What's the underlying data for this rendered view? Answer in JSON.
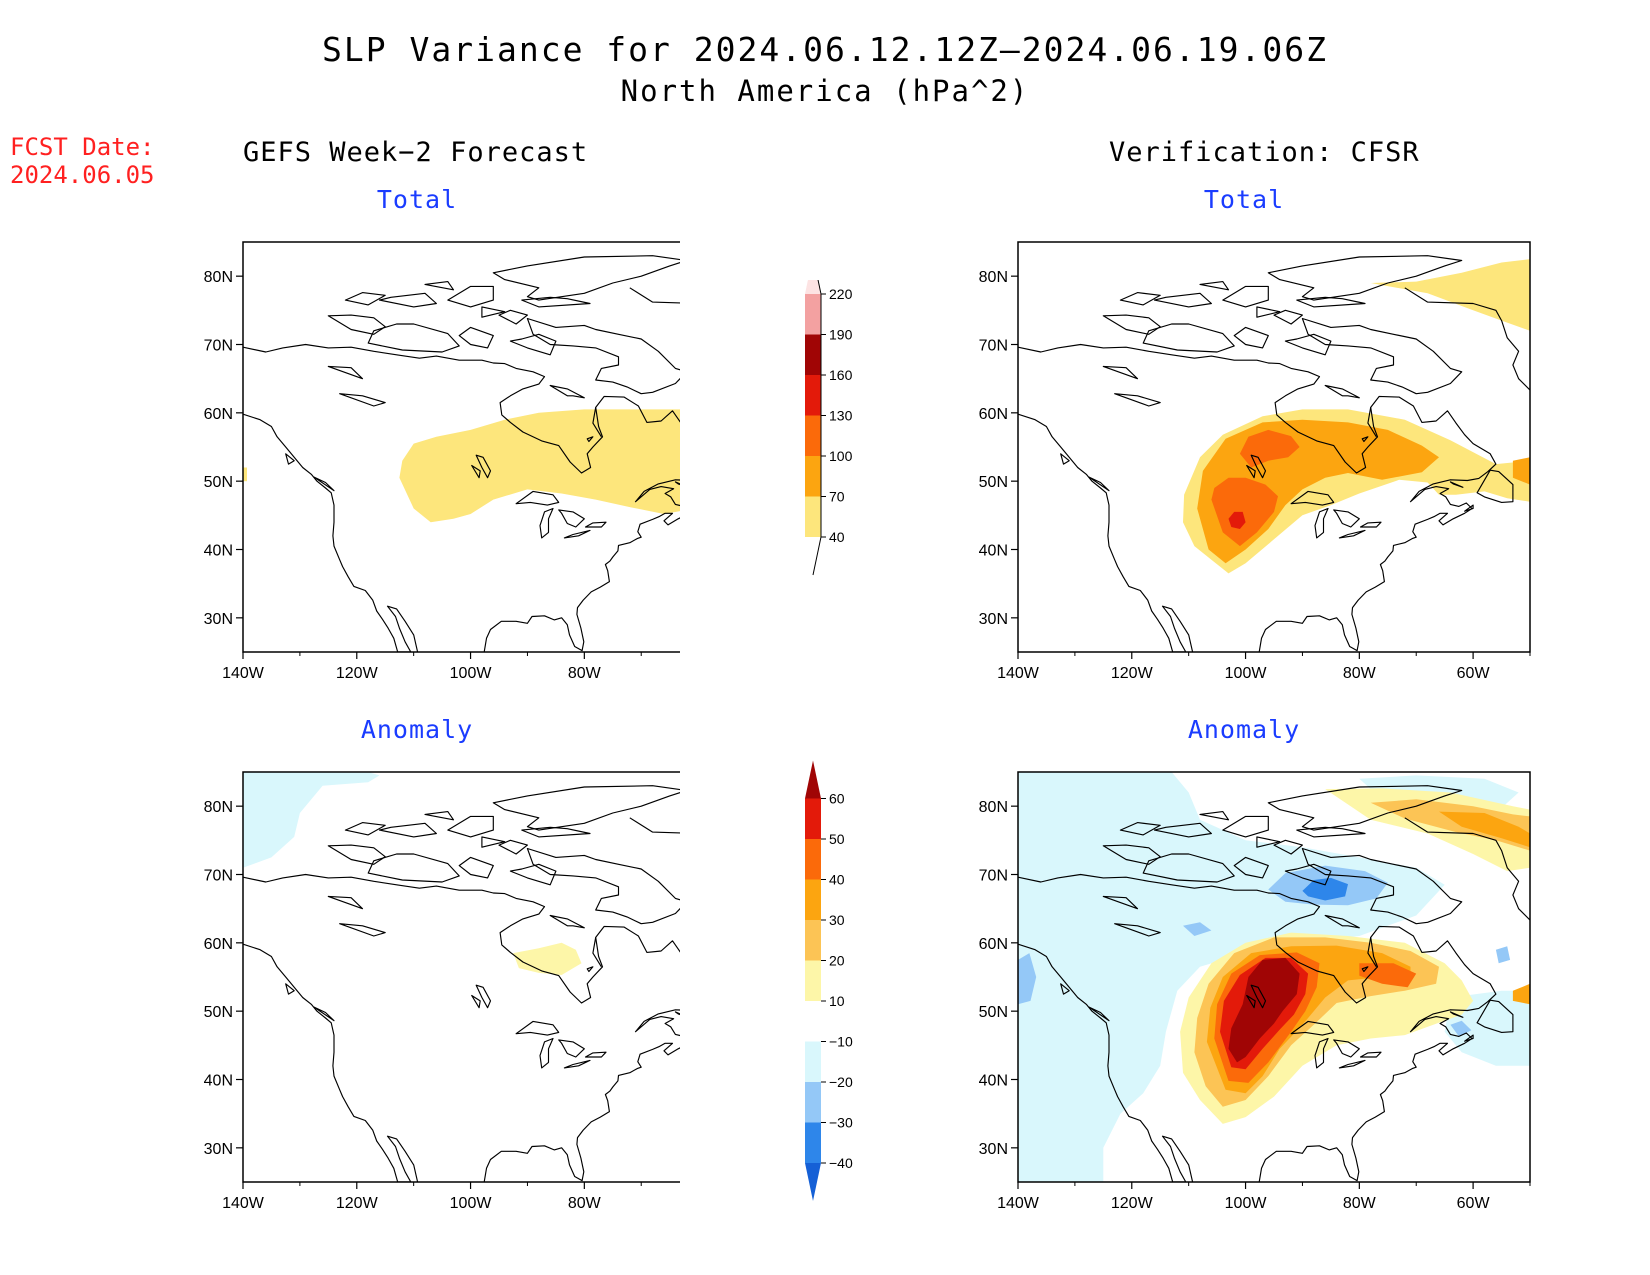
{
  "header": {
    "title": "SLP Variance for 2024.06.12.12Z–2024.06.19.06Z",
    "subtitle": "North America (hPa^2)",
    "fcst_label": "FCST Date:",
    "fcst_date": "2024.06.05"
  },
  "columns": {
    "left": "GEFS Week−2 Forecast",
    "right": "Verification: CFSR"
  },
  "panels": {
    "total_label": "Total",
    "anomaly_label": "Anomaly"
  },
  "axes": {
    "lat_ticks": [
      "80N",
      "70N",
      "60N",
      "50N",
      "40N",
      "30N"
    ],
    "lon_ticks": [
      "140W",
      "120W",
      "100W",
      "80W",
      "60W"
    ]
  },
  "colorbars": {
    "total": {
      "levels": [
        "40",
        "70",
        "100",
        "130",
        "160",
        "190",
        "220"
      ],
      "colors": [
        "#fde67c",
        "#fca510",
        "#fb6a0a",
        "#e31a0a",
        "#a00505",
        "#f3a1a1",
        "#fde3e3"
      ]
    },
    "anomaly": {
      "levels": [
        "−40",
        "−30",
        "−20",
        "−10",
        "10",
        "20",
        "30",
        "40",
        "50",
        "60"
      ],
      "colors": [
        "#1560d6",
        "#2e86ea",
        "#94c8f7",
        "#d9f7fc",
        "#ffffff",
        "#fdf6a8",
        "#fcc455",
        "#fca510",
        "#fb6a0a",
        "#e31a0a",
        "#a00505"
      ]
    }
  },
  "fill_colors": {
    "c40": "#fde67c",
    "c70": "#fca510",
    "c100": "#fb6a0a",
    "c130": "#e31a0a",
    "c160": "#a00505",
    "a10": "#fdf6a8",
    "a20": "#fcc455",
    "a30": "#fca510",
    "a40": "#fb6a0a",
    "a50": "#e31a0a",
    "a60": "#a00505",
    "n10": "#d9f7fc",
    "n20": "#94c8f7",
    "n30": "#2e86ea"
  }
}
